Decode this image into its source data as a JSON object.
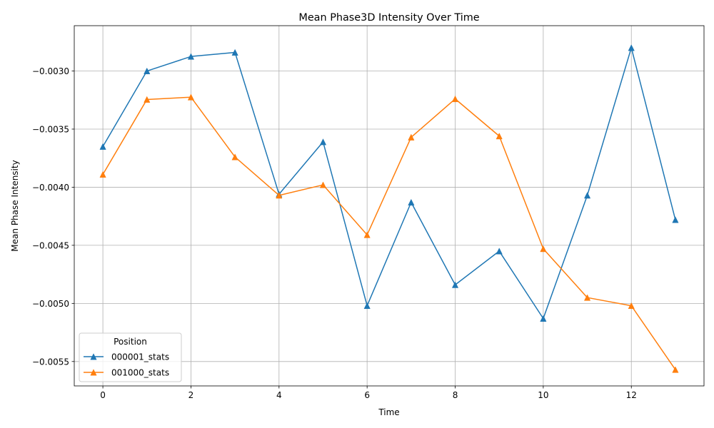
{
  "chart_data": {
    "type": "line",
    "title": "Mean Phase3D Intensity Over Time",
    "xlabel": "Time",
    "ylabel": "Mean Phase Intensity",
    "xlim": [
      -0.65,
      13.65
    ],
    "ylim": [
      -0.00571,
      -0.00261
    ],
    "xticks": [
      0,
      2,
      4,
      6,
      8,
      10,
      12
    ],
    "xtick_labels": [
      "0",
      "2",
      "4",
      "6",
      "8",
      "10",
      "12"
    ],
    "yticks": [
      -0.0055,
      -0.005,
      -0.0045,
      -0.004,
      -0.0035,
      -0.003
    ],
    "ytick_labels": [
      "−0.0055",
      "−0.0050",
      "−0.0045",
      "−0.0040",
      "−0.0035",
      "−0.0030"
    ],
    "grid": true,
    "marker": "triangle-up",
    "legend": {
      "title": "Position",
      "placement": "lower-left"
    },
    "x": [
      0,
      1,
      2,
      3,
      4,
      5,
      6,
      7,
      8,
      9,
      10,
      11,
      12,
      13
    ],
    "series": [
      {
        "name": "000001_stats",
        "color": "#1f77b4",
        "values": [
          -0.00365,
          -0.003,
          -0.002875,
          -0.00284,
          -0.00406,
          -0.00361,
          -0.00502,
          -0.00413,
          -0.00484,
          -0.00455,
          -0.00513,
          -0.00407,
          -0.0028,
          -0.00428
        ]
      },
      {
        "name": "001000_stats",
        "color": "#ff7f0e",
        "values": [
          -0.00389,
          -0.003245,
          -0.003225,
          -0.00374,
          -0.00407,
          -0.00398,
          -0.00441,
          -0.00357,
          -0.00324,
          -0.00356,
          -0.00453,
          -0.00495,
          -0.00502,
          -0.00557
        ]
      }
    ]
  }
}
